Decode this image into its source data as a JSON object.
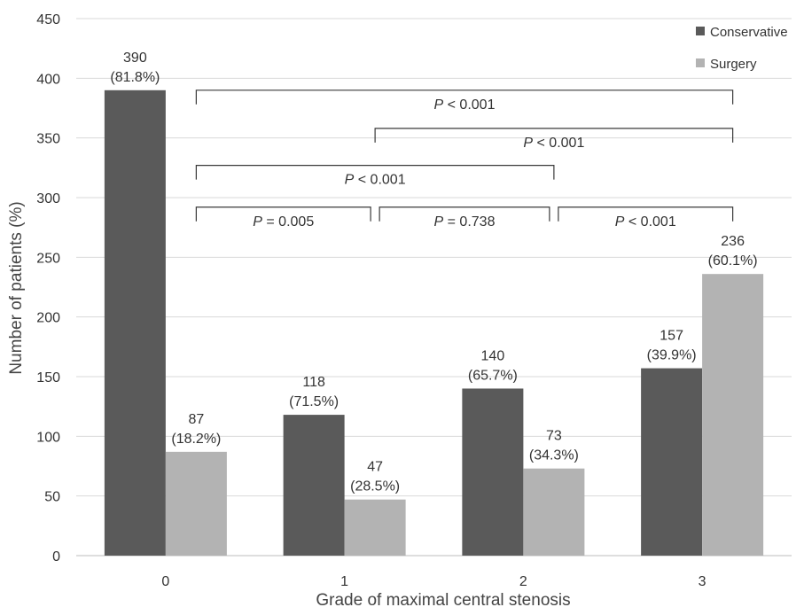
{
  "chart_data": {
    "type": "bar",
    "categories": [
      "0",
      "1",
      "2",
      "3"
    ],
    "series": [
      {
        "name": "Conservative",
        "color": "#5a5a5a",
        "values": [
          390,
          118,
          140,
          157
        ],
        "labels": [
          [
            "390",
            "(81.8%)"
          ],
          [
            "118",
            "(71.5%)"
          ],
          [
            "140",
            "(65.7%)"
          ],
          [
            "157",
            "(39.9%)"
          ]
        ]
      },
      {
        "name": "Surgery",
        "color": "#b3b3b3",
        "values": [
          87,
          47,
          73,
          236
        ],
        "labels": [
          [
            "87",
            "(18.2%)"
          ],
          [
            "47",
            "(28.5%)"
          ],
          [
            "73",
            "(34.3%)"
          ],
          [
            "236",
            "(60.1%)"
          ]
        ]
      }
    ],
    "xlabel": "Grade of maximal central stenosis",
    "ylabel": "Number of patients (%)",
    "ylim": [
      0,
      450
    ],
    "yticks": [
      0,
      50,
      100,
      150,
      200,
      250,
      300,
      350,
      400,
      450
    ],
    "grid": true,
    "legend_position": "top-right",
    "comparisons": [
      {
        "from": 0,
        "to": 3,
        "level": 390,
        "p": "P",
        "rest": " < 0.001"
      },
      {
        "from": 1,
        "to": 3,
        "level": 358,
        "p": "P",
        "rest": " < 0.001"
      },
      {
        "from": 0,
        "to": 2,
        "level": 327,
        "p": "P",
        "rest": " < 0.001"
      },
      {
        "from": 0,
        "to": 1,
        "level": 292,
        "p": "P",
        "rest": " = 0.005"
      },
      {
        "from": 1,
        "to": 2,
        "level": 292,
        "p": "P",
        "rest": " = 0.738"
      },
      {
        "from": 2,
        "to": 3,
        "level": 292,
        "p": "P",
        "rest": " < 0.001"
      }
    ]
  }
}
